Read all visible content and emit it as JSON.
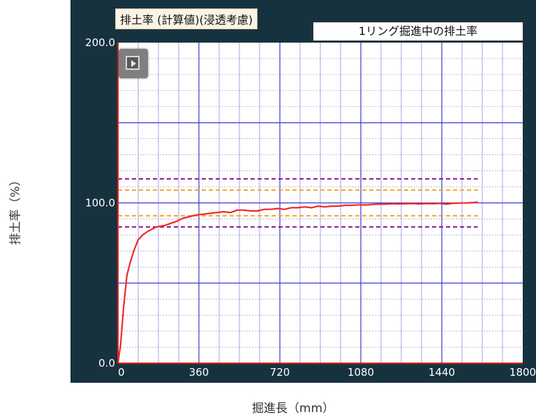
{
  "title": "排土率 (計算値)(浸透考慮)",
  "legend_label": "1リング掘進中の排土率",
  "ylabel": "排土率（%）",
  "xlabel": "掘進長（mm）",
  "colors": {
    "panel": "#17323f",
    "plot_bg": "#ffffff",
    "grid_minor": "#8a8ae6",
    "grid_major": "#3a3acc",
    "axis": "#e02020",
    "series": "#f02828",
    "band_inner": "#f5a623",
    "band_outer": "#8b1a8b",
    "tick_text": "#ffffff"
  },
  "chart_data": {
    "type": "line",
    "title": "排土率 (計算値)(浸透考慮)",
    "xlabel": "掘進長（mm）",
    "ylabel": "排土率（%）",
    "xlim": [
      0,
      1800
    ],
    "ylim": [
      0,
      200
    ],
    "x_ticks": [
      0,
      360,
      720,
      1080,
      1440,
      1800
    ],
    "x_tick_labels": [
      "0",
      "360",
      "720",
      "1080",
      "1440",
      "1800"
    ],
    "y_ticks": [
      0,
      100,
      200
    ],
    "y_tick_labels": [
      "0.0",
      "100.0",
      "200.0"
    ],
    "grid": true,
    "reference_lines": [
      {
        "name": "outer_upper",
        "y": 115,
        "style": "dashed",
        "color": "#8b1a8b",
        "x_range": [
          0,
          1600
        ]
      },
      {
        "name": "inner_upper",
        "y": 108,
        "style": "dashed",
        "color": "#f5a623",
        "x_range": [
          0,
          1600
        ]
      },
      {
        "name": "inner_lower",
        "y": 92,
        "style": "dashed",
        "color": "#f5a623",
        "x_range": [
          0,
          1600
        ]
      },
      {
        "name": "outer_lower",
        "y": 85,
        "style": "dashed",
        "color": "#8b1a8b",
        "x_range": [
          0,
          1600
        ]
      }
    ],
    "series": [
      {
        "color": "#f02828",
        "x": [
          0,
          12,
          25,
          40,
          55,
          70,
          90,
          110,
          130,
          150,
          170,
          190,
          210,
          230,
          260,
          290,
          320,
          350,
          380,
          410,
          440,
          470,
          500,
          530,
          560,
          590,
          620,
          650,
          680,
          710,
          740,
          770,
          800,
          830,
          860,
          890,
          920,
          950,
          980,
          1010,
          1040,
          1070,
          1100,
          1130,
          1160,
          1190,
          1220,
          1250,
          1280,
          1310,
          1340,
          1370,
          1400,
          1430,
          1460,
          1490,
          1520,
          1550,
          1580,
          1600
        ],
        "values": [
          0,
          12,
          35,
          55,
          63,
          70,
          77,
          80,
          82,
          83.5,
          85,
          85.5,
          86,
          87,
          88.5,
          90.5,
          91.5,
          92.5,
          93,
          93.5,
          94,
          94.5,
          94,
          95.5,
          95.5,
          95,
          95,
          96,
          96,
          96.5,
          96,
          97,
          97,
          97.5,
          97,
          98,
          97.5,
          98,
          98,
          98.5,
          98.5,
          98.8,
          98.7,
          99,
          99.3,
          99.2,
          99.5,
          99.4,
          99.5,
          99.6,
          99.4,
          99.6,
          99.5,
          99.7,
          99.2,
          99.8,
          99.9,
          100,
          100.2,
          100.5
        ]
      }
    ]
  }
}
